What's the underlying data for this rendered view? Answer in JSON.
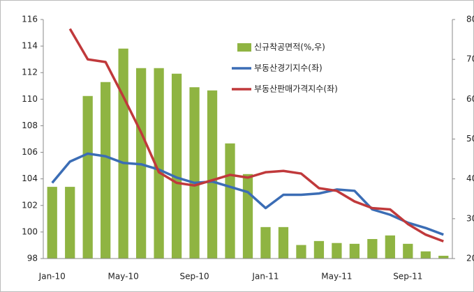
{
  "chart_data": {
    "type": "bar_line",
    "categories": [
      "Jan-10",
      null,
      null,
      null,
      "May-10",
      null,
      null,
      null,
      "Sep-10",
      null,
      null,
      null,
      "Jan-11",
      null,
      null,
      null,
      "May-11",
      null,
      null,
      null,
      "Sep-11",
      null,
      null
    ],
    "series": [
      {
        "name": "신규착공면적(%,우)",
        "color": "#8fb442",
        "type": "bar",
        "axis": "y2",
        "values": [
          38,
          38,
          60.8,
          64.3,
          72.7,
          67.8,
          67.8,
          66.4,
          63,
          62.2,
          48.9,
          41.2,
          27.9,
          27.9,
          23.4,
          24.4,
          23.9,
          23.7,
          24.9,
          25.8,
          23.7,
          21.8,
          20.7
        ]
      },
      {
        "name": "부동산경기지수(좌)",
        "color": "#3b6db5",
        "type": "line",
        "values": [
          103.7,
          105.3,
          105.9,
          105.7,
          105.2,
          105.1,
          104.7,
          104.1,
          103.7,
          103.8,
          103.4,
          103.0,
          101.8,
          102.8,
          102.8,
          102.9,
          103.2,
          103.1,
          101.7,
          101.3,
          100.7,
          100.3,
          99.8
        ]
      },
      {
        "name": "부동산판매가격지수(좌)",
        "color": "#c0393b",
        "type": "line",
        "values": [
          null,
          115.3,
          113,
          112.8,
          110.2,
          107.5,
          104.5,
          103.7,
          103.5,
          103.9,
          104.3,
          104.1,
          104.5,
          104.6,
          104.4,
          103.3,
          103.1,
          102.3,
          101.8,
          101.7,
          100.6,
          99.8,
          99.3
        ]
      }
    ],
    "ylim": [
      98,
      116
    ],
    "yticks": [
      98,
      100,
      102,
      104,
      106,
      108,
      110,
      112,
      114,
      116
    ],
    "y2lim": [
      20,
      80
    ],
    "y2ticks": [
      20,
      30,
      40,
      50,
      60,
      70,
      80
    ],
    "grid": false,
    "legend": "top"
  }
}
